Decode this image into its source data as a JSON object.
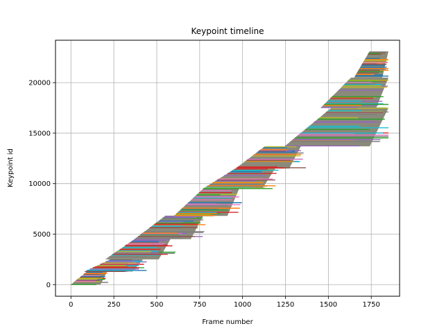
{
  "chart_data": {
    "type": "line",
    "title": "Keypoint timeline",
    "xlabel": "Frame number",
    "ylabel": "Keypoint id",
    "xlim": [
      -90,
      1915
    ],
    "ylim": [
      -1150,
      24200
    ],
    "xticks": [
      0,
      250,
      500,
      750,
      1000,
      1250,
      1500,
      1750
    ],
    "yticks": [
      0,
      5000,
      10000,
      15000,
      20000
    ],
    "xtick_labels": [
      "0",
      "250",
      "500",
      "750",
      "1000",
      "1250",
      "1500",
      "1750"
    ],
    "ytick_labels": [
      "0",
      "5000",
      "10000",
      "15000",
      "20000"
    ],
    "grid": true,
    "legend": "none",
    "series_description": "Each keypoint id is a horizontal segment spanning the frames in which that keypoint is tracked (first frame to last frame).",
    "bands": [
      {
        "id_start": 0,
        "id_end": 1300,
        "frame_start": 0,
        "frame_end": 210
      },
      {
        "id_start": 1300,
        "id_end": 2500,
        "frame_start": 80,
        "frame_end": 420
      },
      {
        "id_start": 2500,
        "id_end": 4500,
        "frame_start": 200,
        "frame_end": 580
      },
      {
        "id_start": 4500,
        "id_end": 6800,
        "frame_start": 370,
        "frame_end": 770
      },
      {
        "id_start": 6800,
        "id_end": 9500,
        "frame_start": 600,
        "frame_end": 980
      },
      {
        "id_start": 9500,
        "id_end": 11500,
        "frame_start": 770,
        "frame_end": 1190
      },
      {
        "id_start": 11500,
        "id_end": 13700,
        "frame_start": 960,
        "frame_end": 1340
      },
      {
        "id_start": 13700,
        "id_end": 17500,
        "frame_start": 1245,
        "frame_end": 1850
      },
      {
        "id_start": 17500,
        "id_end": 20500,
        "frame_start": 1455,
        "frame_end": 1850
      },
      {
        "id_start": 20500,
        "id_end": 23100,
        "frame_start": 1650,
        "frame_end": 1850
      }
    ],
    "colors": [
      "#1f77b4",
      "#ff7f0e",
      "#2ca02c",
      "#d62728",
      "#9467bd",
      "#8c564b",
      "#e377c2",
      "#7f7f7f",
      "#bcbd22",
      "#17becf"
    ],
    "fill_color": "#8a8a7a"
  }
}
